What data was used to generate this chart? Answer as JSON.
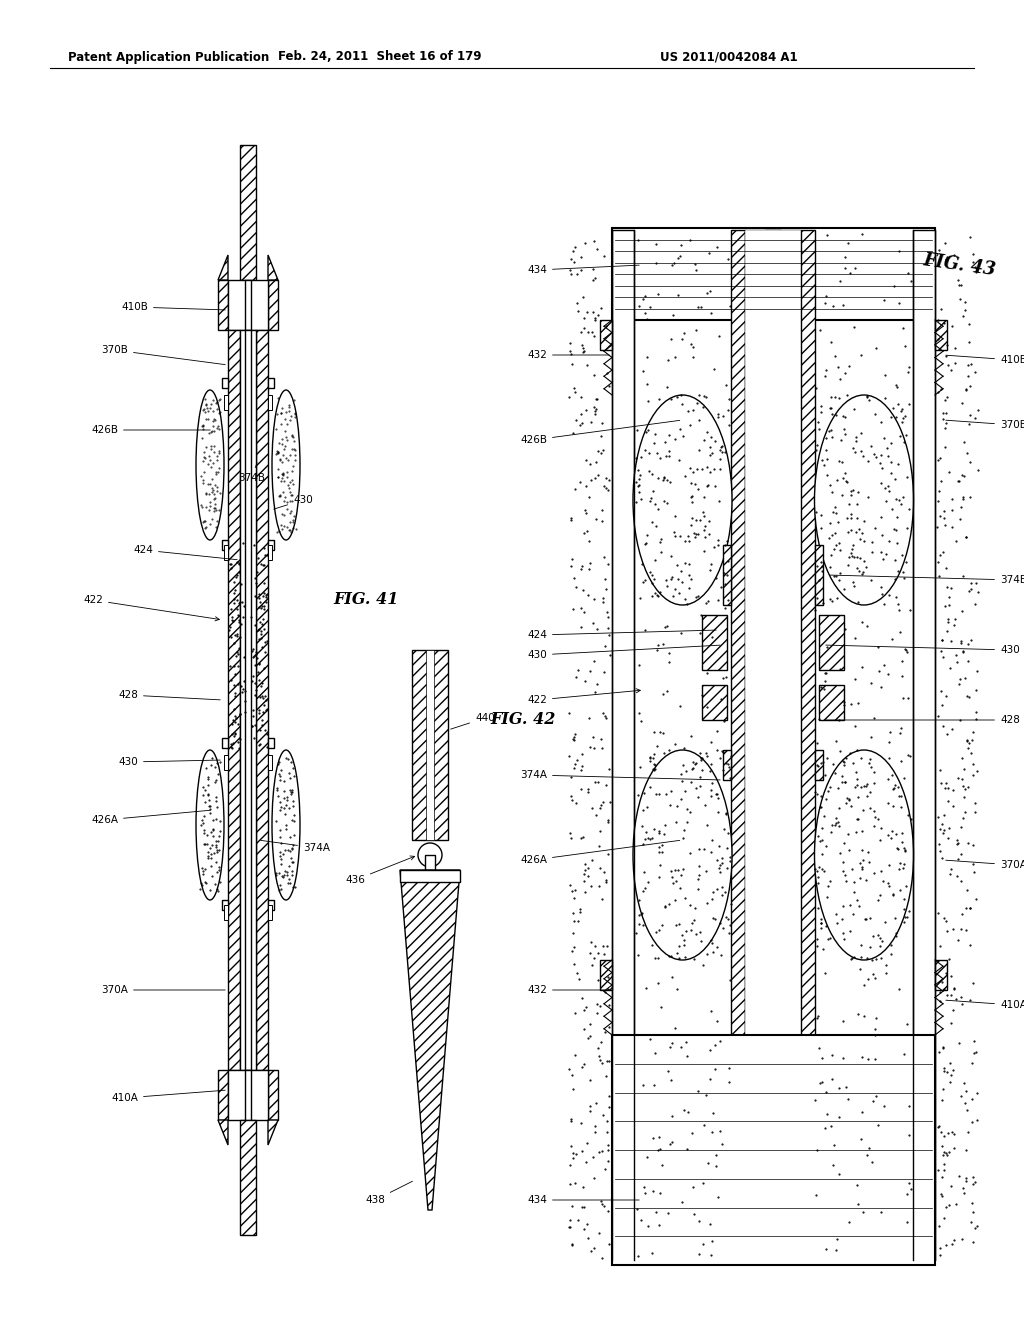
{
  "header_left": "Patent Application Publication",
  "header_mid": "Feb. 24, 2011  Sheet 16 of 179",
  "header_right": "US 2011/0042084 A1",
  "fig41_label": "FIG. 41",
  "fig42_label": "FIG. 42",
  "fig43_label": "FIG. 43",
  "bg_color": "#ffffff"
}
